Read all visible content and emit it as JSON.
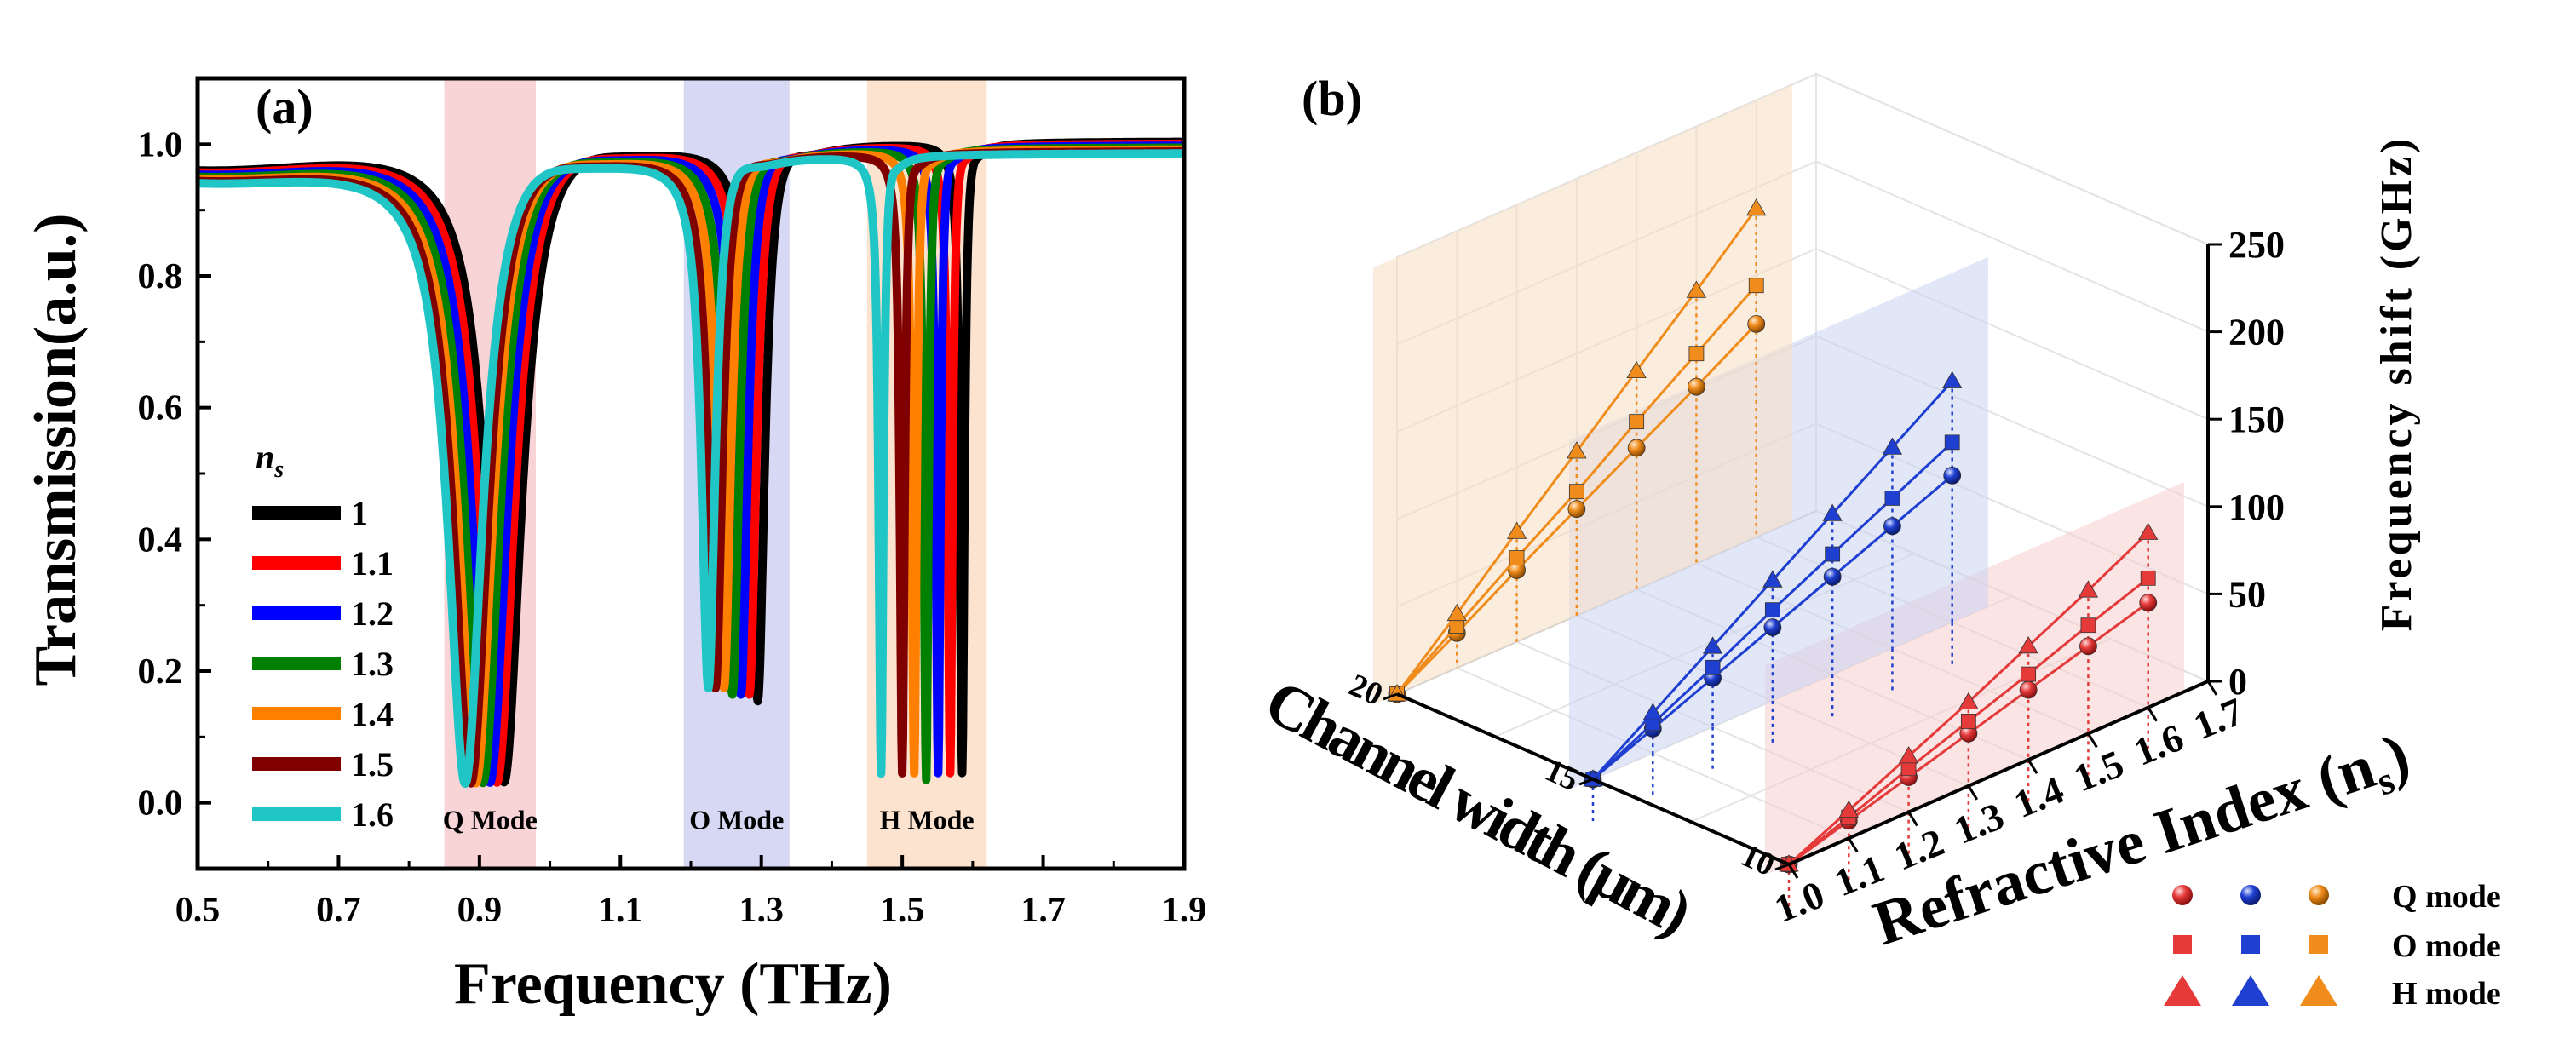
{
  "chart_data": [
    {
      "panel": "(a)",
      "type": "line",
      "xlabel": "Frequency (THz)",
      "ylabel": "Transmission(a.u.)",
      "xlim": [
        0.5,
        1.9
      ],
      "ylim": [
        -0.1,
        1.1
      ],
      "xticks": [
        "0.5",
        "0.7",
        "0.9",
        "1.1",
        "1.3",
        "1.5",
        "1.7",
        "1.9"
      ],
      "yticks": [
        "0.0",
        "0.2",
        "0.4",
        "0.6",
        "0.8",
        "1.0"
      ],
      "legend_title": "n",
      "legend_title_sub": "s",
      "legend_position": "lower-left",
      "bands": [
        {
          "label": "Q Mode",
          "x0": 0.85,
          "x1": 0.98,
          "color": "#f8d4d6"
        },
        {
          "label": "O Mode",
          "x0": 1.19,
          "x1": 1.34,
          "color": "#d7d8f4"
        },
        {
          "label": "H Mode",
          "x0": 1.45,
          "x1": 1.62,
          "color": "#fbe3d0"
        }
      ],
      "series": [
        {
          "name": "1",
          "color": "#000000",
          "dips": [
            {
              "f": 0.935,
              "min": 0.01
            },
            {
              "f": 1.295,
              "min": 0.14
            },
            {
              "f": 1.585,
              "min": 0.03
            }
          ]
        },
        {
          "name": "1.1",
          "color": "#ff0000",
          "dips": [
            {
              "f": 0.925,
              "min": 0.01
            },
            {
              "f": 1.283,
              "min": 0.15
            },
            {
              "f": 1.568,
              "min": 0.03
            }
          ]
        },
        {
          "name": "1.2",
          "color": "#0000ff",
          "dips": [
            {
              "f": 0.915,
              "min": 0.01
            },
            {
              "f": 1.271,
              "min": 0.15
            },
            {
              "f": 1.551,
              "min": 0.03
            }
          ]
        },
        {
          "name": "1.3",
          "color": "#008000",
          "dips": [
            {
              "f": 0.905,
              "min": 0.01
            },
            {
              "f": 1.259,
              "min": 0.15
            },
            {
              "f": 1.534,
              "min": 0.02
            }
          ]
        },
        {
          "name": "1.4",
          "color": "#ff8000",
          "dips": [
            {
              "f": 0.895,
              "min": 0.01
            },
            {
              "f": 1.247,
              "min": 0.16
            },
            {
              "f": 1.517,
              "min": 0.03
            }
          ]
        },
        {
          "name": "1.5",
          "color": "#800000",
          "dips": [
            {
              "f": 0.888,
              "min": 0.01
            },
            {
              "f": 1.235,
              "min": 0.16
            },
            {
              "f": 1.5,
              "min": 0.03
            }
          ]
        },
        {
          "name": "1.6",
          "color": "#20c5c5",
          "dips": [
            {
              "f": 0.88,
              "min": 0.01
            },
            {
              "f": 1.225,
              "min": 0.16
            },
            {
              "f": 1.47,
              "min": 0.03
            }
          ]
        }
      ]
    },
    {
      "panel": "(b)",
      "type": "scatter3d",
      "xlabel": "Refractive Index (n",
      "xlabel_sub": "s",
      "xlabel_close": ")",
      "ylabel": "Channel width (μm)",
      "zlabel": "Frequency shift (GHz)",
      "xticks": [
        "1.0",
        "1.1",
        "1.2",
        "1.3",
        "1.4",
        "1.5",
        "1.6",
        "1.7"
      ],
      "yticks": [
        "10",
        "15",
        "20"
      ],
      "zticks": [
        "0",
        "50",
        "100",
        "150",
        "200",
        "250"
      ],
      "zlim": [
        0,
        250
      ],
      "refractive_index": [
        1.0,
        1.1,
        1.2,
        1.3,
        1.4,
        1.5,
        1.6
      ],
      "channel_widths": [
        {
          "width": 10,
          "color": "#e53a3a",
          "plane": "#f7cdcd",
          "Q": [
            0,
            10,
            20,
            30,
            40,
            50,
            60
          ],
          "O": [
            0,
            12,
            25,
            37,
            49,
            62,
            74
          ],
          "H": [
            0,
            16,
            32,
            48,
            65,
            82,
            100
          ]
        },
        {
          "width": 15,
          "color": "#1f3fd1",
          "plane": "#cbd3f3",
          "Q": [
            0,
            14,
            28,
            42,
            56,
            70,
            84
          ],
          "O": [
            0,
            17,
            34,
            52,
            69,
            86,
            103
          ],
          "H": [
            0,
            23,
            46,
            69,
            92,
            115,
            138
          ]
        },
        {
          "width": 20,
          "color": "#f08c1c",
          "plane": "#f8dfc2",
          "Q": [
            0,
            20,
            41,
            61,
            81,
            101,
            122
          ],
          "O": [
            0,
            24,
            48,
            71,
            96,
            120,
            144
          ],
          "H": [
            0,
            31,
            63,
            94,
            125,
            156,
            188
          ]
        }
      ],
      "legend": {
        "position": "bottom-right",
        "rows": [
          {
            "label": "Q mode",
            "marker": "sphere"
          },
          {
            "label": "O mode",
            "marker": "square"
          },
          {
            "label": "H mode",
            "marker": "triangle"
          }
        ],
        "colors": [
          "#e53a3a",
          "#1f3fd1",
          "#f08c1c"
        ]
      }
    }
  ]
}
